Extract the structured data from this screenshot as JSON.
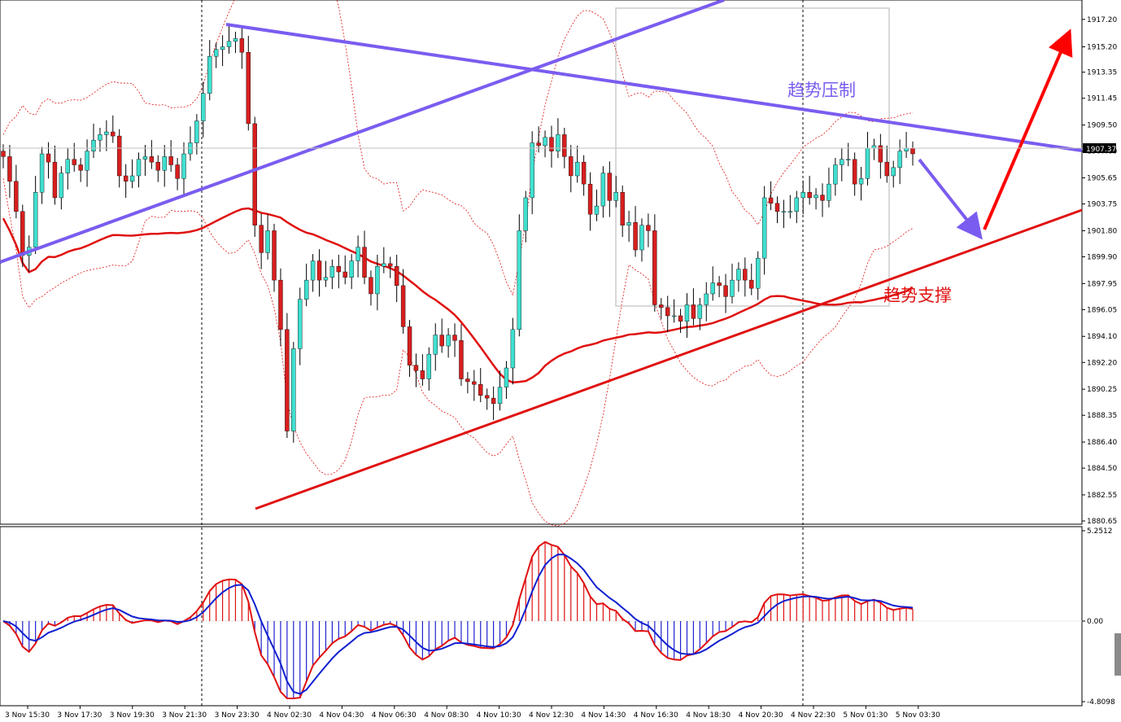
{
  "chart_data": [
    {
      "type": "candlestick",
      "title": "",
      "y_axis": {
        "position": "right",
        "ylim": [
          1880.65,
          1917.9
        ],
        "tick_labels": [
          "1917.20",
          "1915.20",
          "1913.35",
          "1911.45",
          "1909.50",
          "1907.60",
          "1905.65",
          "1903.75",
          "1901.80",
          "1899.90",
          "1897.95",
          "1896.05",
          "1894.10",
          "1892.20",
          "1890.25",
          "1888.35",
          "1886.40",
          "1884.50",
          "1882.55",
          "1880.65"
        ],
        "current_price": "1907.37"
      },
      "x_axis": {
        "tick_labels": [
          "3 Nov 15:30",
          "3 Nov 17:30",
          "3 Nov 19:30",
          "3 Nov 21:30",
          "3 Nov 23:30",
          "4 Nov 02:30",
          "4 Nov 04:30",
          "4 Nov 06:30",
          "4 Nov 08:30",
          "4 Nov 10:30",
          "4 Nov 12:30",
          "4 Nov 14:30",
          "4 Nov 16:30",
          "4 Nov 18:30",
          "4 Nov 20:30",
          "4 Nov 22:30",
          "5 Nov 01:30",
          "5 Nov 03:30"
        ]
      },
      "colors": {
        "bull": "#40e0d0",
        "bear": "#d81e1e",
        "wick": "#000000",
        "ma": "#e01010",
        "bands": "#e01010",
        "trend_resistance": "#7b5cf0",
        "trend_support": "#e01010",
        "arrow_up": "#ff0000",
        "arrow_down": "#7b5cf0",
        "box": "#cccccc"
      },
      "series": [
        {
          "name": "",
          "kind": "candles",
          "close": [
            1907.2,
            1905.4,
            1903.2,
            1900.0,
            1900.6,
            1904.6,
            1907.4,
            1906.8,
            1904.2,
            1906.0,
            1907.0,
            1906.6,
            1906.2,
            1907.6,
            1908.4,
            1908.8,
            1909.0,
            1908.7,
            1905.8,
            1905.4,
            1905.8,
            1907.0,
            1907.2,
            1906.8,
            1906.2,
            1907.2,
            1906.6,
            1905.6,
            1907.4,
            1908.2,
            1909.8,
            1911.8,
            1914.5,
            1915.0,
            1915.2,
            1915.6,
            1915.8,
            1914.8,
            1909.6,
            1902.2,
            1900.2,
            1901.8,
            1898.2,
            1894.6,
            1887.2,
            1893.2,
            1896.8,
            1898.2,
            1899.6,
            1898.2,
            1898.4,
            1899.2,
            1898.8,
            1898.4,
            1899.6,
            1900.6,
            1898.4,
            1897.2,
            1899.2,
            1899.4,
            1899.2,
            1897.8,
            1894.8,
            1892.0,
            1891.6,
            1891.0,
            1892.8,
            1894.2,
            1893.4,
            1894.2,
            1893.8,
            1891.0,
            1890.8,
            1890.6,
            1889.8,
            1889.6,
            1889.2,
            1890.4,
            1891.8,
            1894.6,
            1901.8,
            1904.2,
            1908.2,
            1908.0,
            1908.6,
            1907.6,
            1908.8,
            1907.2,
            1905.8,
            1906.8,
            1905.2,
            1903.0,
            1903.6,
            1906.0,
            1904.0,
            1904.6,
            1902.2,
            1902.4,
            1900.4,
            1902.2,
            1901.8,
            1896.4,
            1896.2,
            1895.6,
            1895.6,
            1895.2,
            1896.4,
            1895.4,
            1896.4,
            1897.2,
            1898.0,
            1897.8,
            1897.0,
            1898.2,
            1899.0,
            1898.2,
            1897.6,
            1899.8,
            1904.2,
            1903.8,
            1903.2,
            1903.2,
            1903.2,
            1904.2,
            1904.6,
            1904.2,
            1904.4,
            1904.0,
            1905.2,
            1906.6,
            1907.0,
            1907.0,
            1905.2,
            1905.6,
            1907.8,
            1908.0,
            1906.8,
            1905.8,
            1906.4,
            1907.6,
            1907.8,
            1907.4
          ]
        }
      ],
      "annotations": [
        "趋势压制",
        "趋势支撑"
      ]
    },
    {
      "type": "macd-histogram",
      "y_axis": {
        "tick_labels": [
          "5.2512",
          "0.00",
          "-4.8098"
        ],
        "ylim": [
          -4.8098,
          5.2512
        ]
      },
      "colors": {
        "positive": "#e01010",
        "negative": "#2020d0",
        "fast": "#e01010",
        "slow": "#1020d0"
      }
    }
  ]
}
